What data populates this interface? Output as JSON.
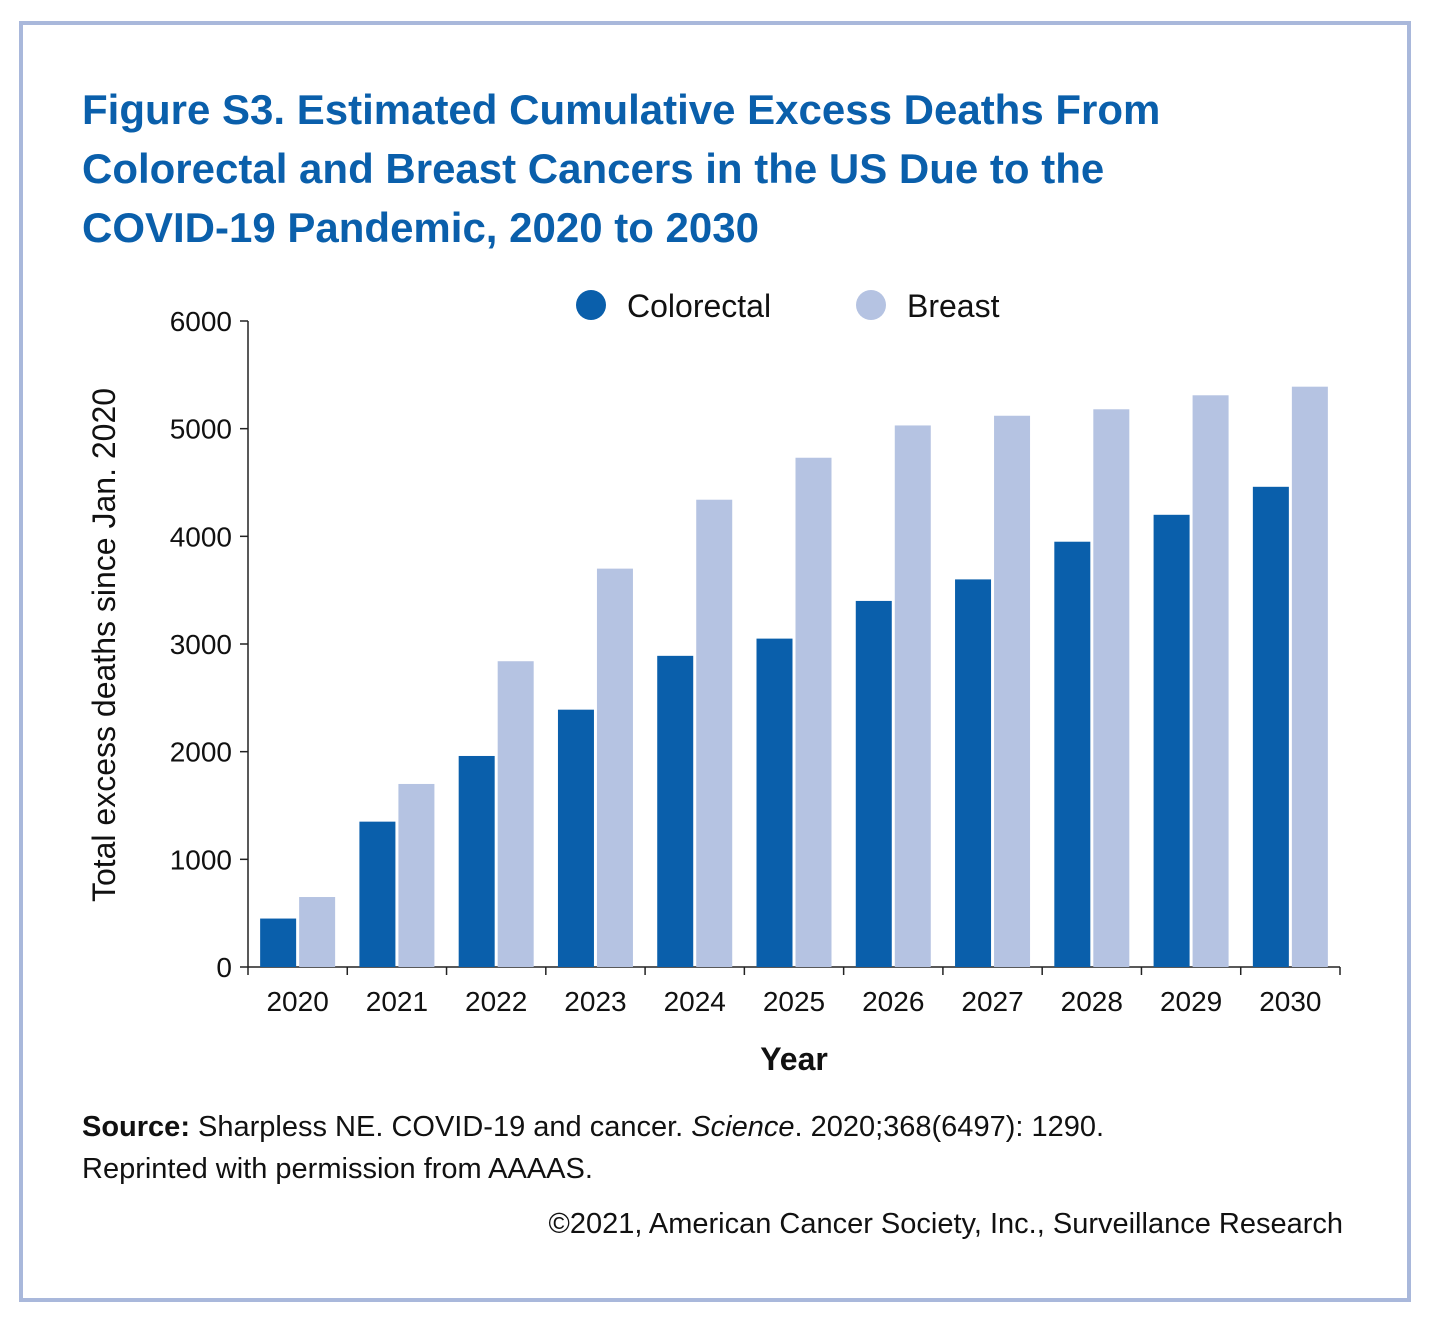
{
  "chart_data": {
    "type": "bar",
    "title": [
      "Figure S3. Estimated Cumulative Excess Deaths From",
      "Colorectal and Breast Cancers in the US Due to the",
      "COVID-19 Pandemic, 2020 to 2030"
    ],
    "x_label": "Year",
    "y_label": "Total excess deaths since Jan. 2020",
    "categories": [
      "2020",
      "2021",
      "2022",
      "2023",
      "2024",
      "2025",
      "2026",
      "2027",
      "2028",
      "2029",
      "2030"
    ],
    "series": [
      {
        "name": "Colorectal",
        "color": "#0a5fab",
        "values": [
          450,
          1350,
          1960,
          2390,
          2890,
          3050,
          3400,
          3600,
          3950,
          4200,
          4460
        ]
      },
      {
        "name": "Breast",
        "color": "#b5c3e2",
        "values": [
          650,
          1700,
          2840,
          3700,
          4340,
          4730,
          5030,
          5120,
          5180,
          5310,
          5390
        ]
      }
    ],
    "ylim": [
      0,
      6000
    ],
    "yticks": [
      0,
      1000,
      2000,
      3000,
      4000,
      5000,
      6000
    ],
    "grid": false,
    "legend": "top",
    "source": {
      "label": "Source:",
      "text_1": " Sharpless NE. COVID-19 and cancer. ",
      "journal": "Science",
      "text_2": ". 2020;368(6497): 1290.",
      "line_2": "Reprinted with permission from AAAAS.",
      "copyright": "©2021, American Cancer Society, Inc., Surveillance Research"
    }
  }
}
